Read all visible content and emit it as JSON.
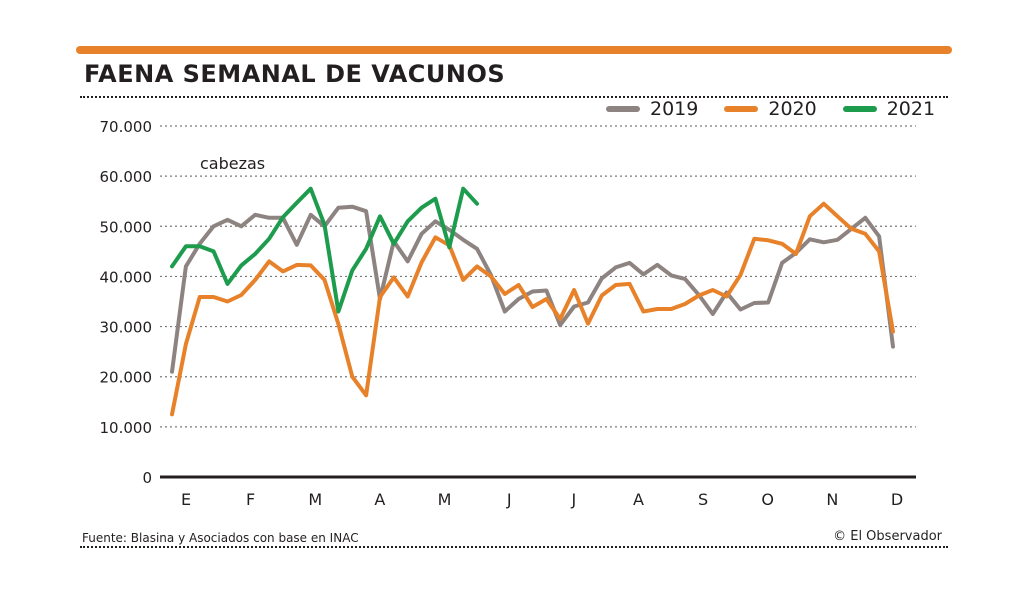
{
  "colors": {
    "accent": "#e8822a",
    "grid": "#7a7a7a",
    "axis": "#231f20"
  },
  "header": {
    "title": "FAENA SEMANAL DE VACUNOS"
  },
  "footer": {
    "source": "Fuente: Blasina y Asociados con base en INAC",
    "credit": "© El Observador"
  },
  "chart_data": {
    "type": "line",
    "title": "FAENA SEMANAL DE VACUNOS",
    "ylabel": "cabezas",
    "xlabel": "",
    "ylim": [
      0,
      70000
    ],
    "yticks": [
      "70.000",
      "60.000",
      "50.000",
      "40.000",
      "30.000",
      "20.000",
      "10.000",
      "0"
    ],
    "ytick_values": [
      70000,
      60000,
      50000,
      40000,
      30000,
      20000,
      10000,
      0
    ],
    "xticks": [
      "E",
      "F",
      "M",
      "A",
      "M",
      "J",
      "J",
      "A",
      "S",
      "O",
      "N",
      "D"
    ],
    "x_unit": "week",
    "xlim": [
      1,
      53
    ],
    "grid": true,
    "legend_placement": "top-right",
    "series": [
      {
        "name": "2019",
        "color": "#8d8381",
        "x": [
          1,
          2,
          3,
          4,
          5,
          6,
          7,
          8,
          9,
          10,
          11,
          12,
          13,
          14,
          15,
          16,
          17,
          18,
          19,
          20,
          21,
          22,
          23,
          24,
          25,
          26,
          27,
          28,
          29,
          30,
          31,
          32,
          33,
          34,
          35,
          36,
          37,
          38,
          39,
          40,
          41,
          42,
          43,
          44,
          45,
          46,
          47,
          48,
          49,
          50,
          51,
          52,
          53
        ],
        "values": [
          21000,
          42000,
          46500,
          50000,
          51300,
          50000,
          52300,
          51700,
          51700,
          46300,
          52300,
          50000,
          53700,
          53900,
          53000,
          35500,
          47000,
          43000,
          48500,
          51000,
          49300,
          47300,
          45500,
          40300,
          33000,
          35500,
          37000,
          37200,
          30300,
          34000,
          34800,
          39600,
          41800,
          42700,
          40400,
          42300,
          40200,
          39500,
          36300,
          32500,
          36800,
          33400,
          34700,
          34800,
          42700,
          44700,
          47400,
          46800,
          47300,
          49500,
          51700,
          48000,
          26000
        ]
      },
      {
        "name": "2020",
        "color": "#e8822a",
        "x": [
          1,
          2,
          3,
          4,
          5,
          6,
          7,
          8,
          9,
          10,
          11,
          12,
          13,
          14,
          15,
          16,
          17,
          18,
          19,
          20,
          21,
          22,
          23,
          24,
          25,
          26,
          27,
          28,
          29,
          30,
          31,
          32,
          33,
          34,
          35,
          36,
          37,
          38,
          39,
          40,
          41,
          42,
          43,
          44,
          45,
          46,
          47,
          48,
          49,
          50,
          51,
          52,
          53
        ],
        "values": [
          12500,
          26500,
          35900,
          35900,
          35000,
          36300,
          39300,
          43000,
          41000,
          42300,
          42200,
          39300,
          30500,
          20000,
          16300,
          35900,
          39800,
          36000,
          42800,
          47800,
          46200,
          39300,
          42000,
          40000,
          36500,
          38300,
          33900,
          35500,
          31500,
          37300,
          30600,
          36200,
          38300,
          38500,
          33000,
          33500,
          33500,
          34500,
          36200,
          37300,
          36000,
          40300,
          47500,
          47200,
          46500,
          44500,
          52000,
          54500,
          52000,
          49500,
          48500,
          45000,
          29000
        ]
      },
      {
        "name": "2021",
        "color": "#1d9c4e",
        "x": [
          1,
          2,
          3,
          4,
          5,
          6,
          7,
          8,
          9,
          10,
          11,
          12,
          13,
          14,
          15,
          16,
          17,
          18,
          19,
          20,
          21,
          22,
          23,
          24
        ],
        "values": [
          42000,
          46000,
          46000,
          45000,
          38500,
          42200,
          44500,
          47500,
          51800,
          54700,
          57500,
          50300,
          33000,
          41200,
          45500,
          52000,
          46500,
          51000,
          53700,
          55500,
          45800,
          57500,
          54500,
          null
        ]
      }
    ]
  }
}
